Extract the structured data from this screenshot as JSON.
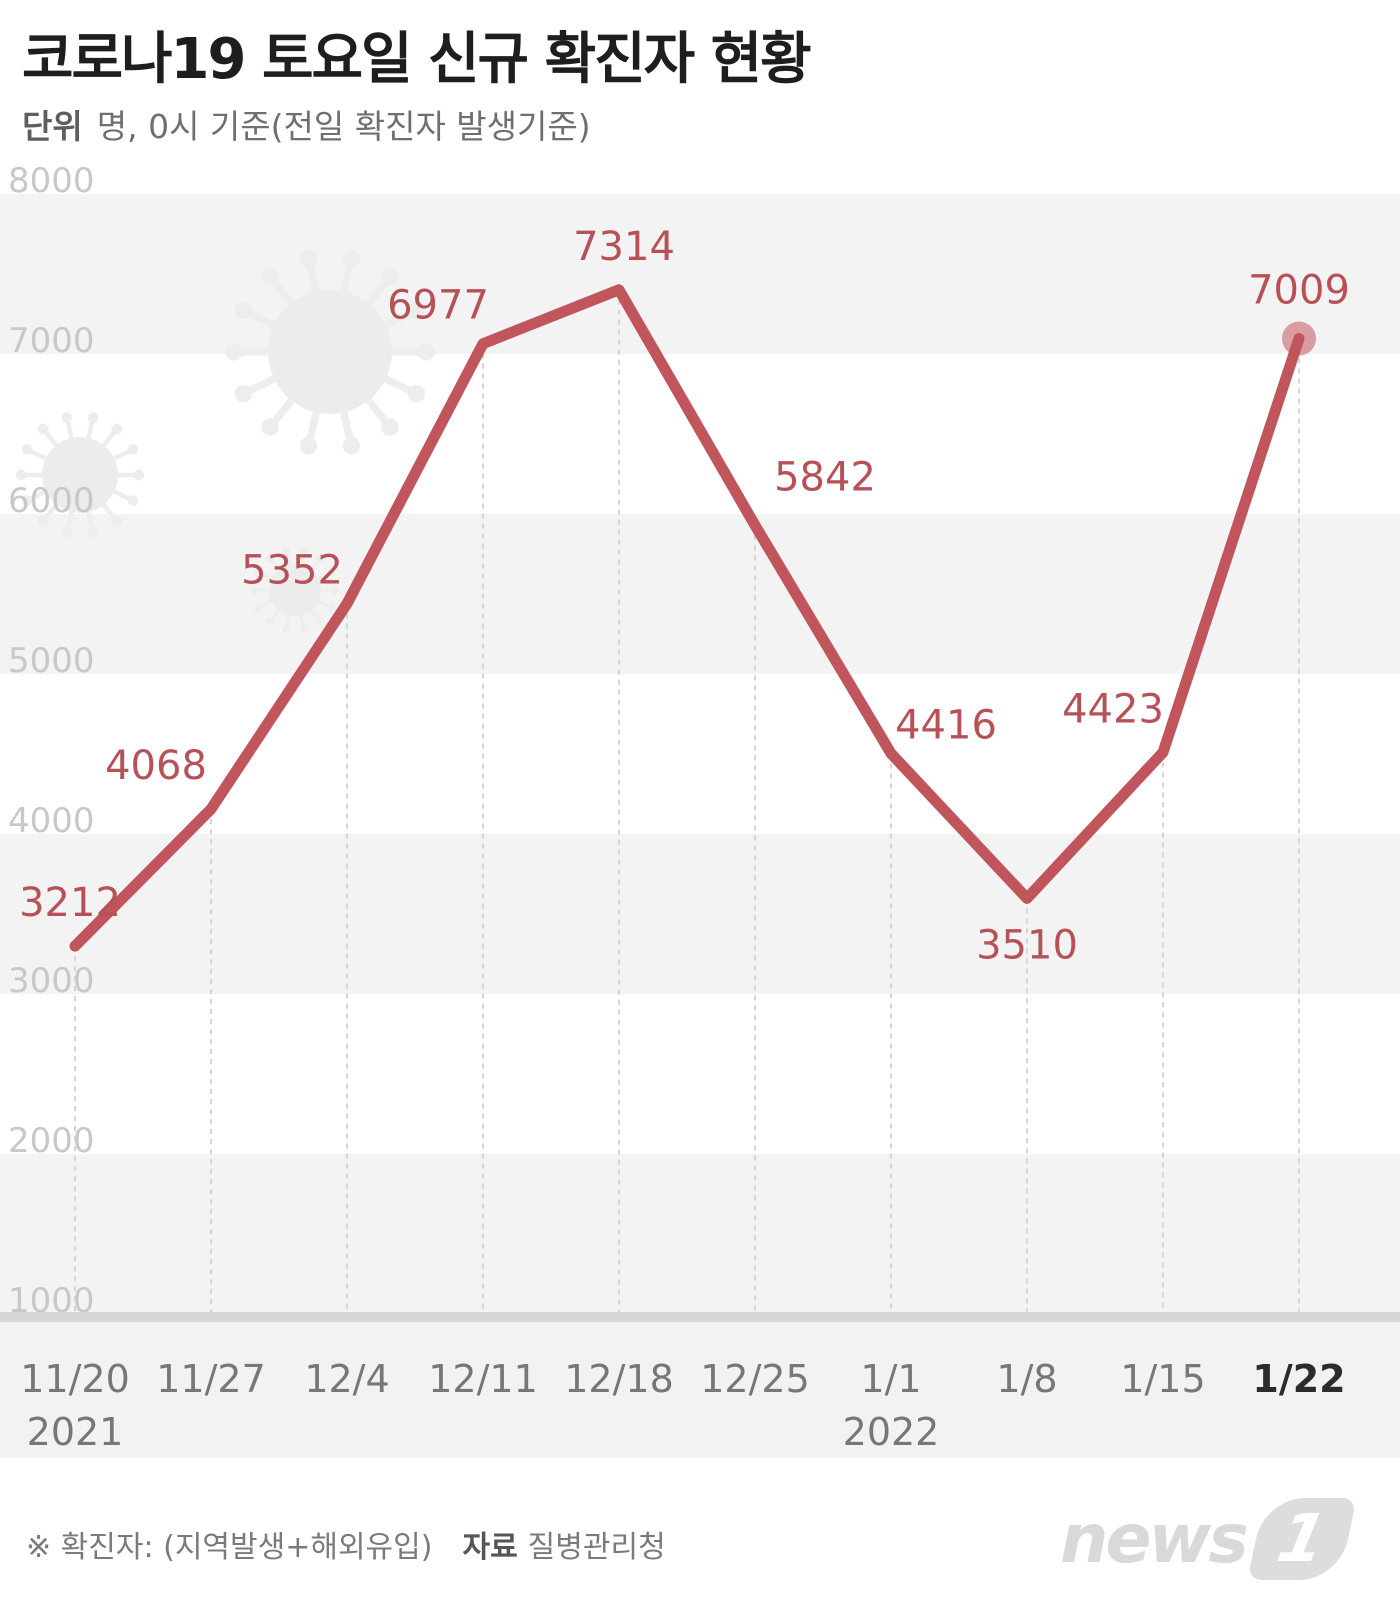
{
  "header": {
    "title": "코로나19 토요일 신규 확진자 현황",
    "unit_label": "단위",
    "unit_text": "명, 0시 기준(전일 확진자 발생기준)"
  },
  "footer": {
    "note": "※ 확진자: (지역발생+해외유입)",
    "source_label": "자료",
    "source": "질병관리청"
  },
  "logo": {
    "text": "news",
    "mark": "1"
  },
  "colors": {
    "line": "#c0555b",
    "label": "#b65257",
    "band": "#f3f3f3",
    "axis_text": "#c8c8c8",
    "xaxis_text": "#777777",
    "highlight": "#2b2b2b"
  },
  "chart_data": {
    "type": "line",
    "title": "코로나19 토요일 신규 확진자 현황",
    "ylabel": "",
    "xlabel": "",
    "ylim": [
      1000,
      8000
    ],
    "yticks": [
      1000,
      2000,
      3000,
      4000,
      5000,
      6000,
      7000,
      8000
    ],
    "categories": [
      "11/20",
      "11/27",
      "12/4",
      "12/11",
      "12/18",
      "12/25",
      "1/1",
      "1/8",
      "1/15",
      "1/22"
    ],
    "year_labels": [
      {
        "category": "11/20",
        "label": "2021"
      },
      {
        "category": "1/1",
        "label": "2022"
      }
    ],
    "highlight_category": "1/22",
    "series": [
      {
        "values": [
          3212,
          4068,
          5352,
          6977,
          7314,
          5842,
          4416,
          3510,
          4423,
          7009
        ]
      }
    ],
    "grid": "alternating bands",
    "legend": "none"
  }
}
